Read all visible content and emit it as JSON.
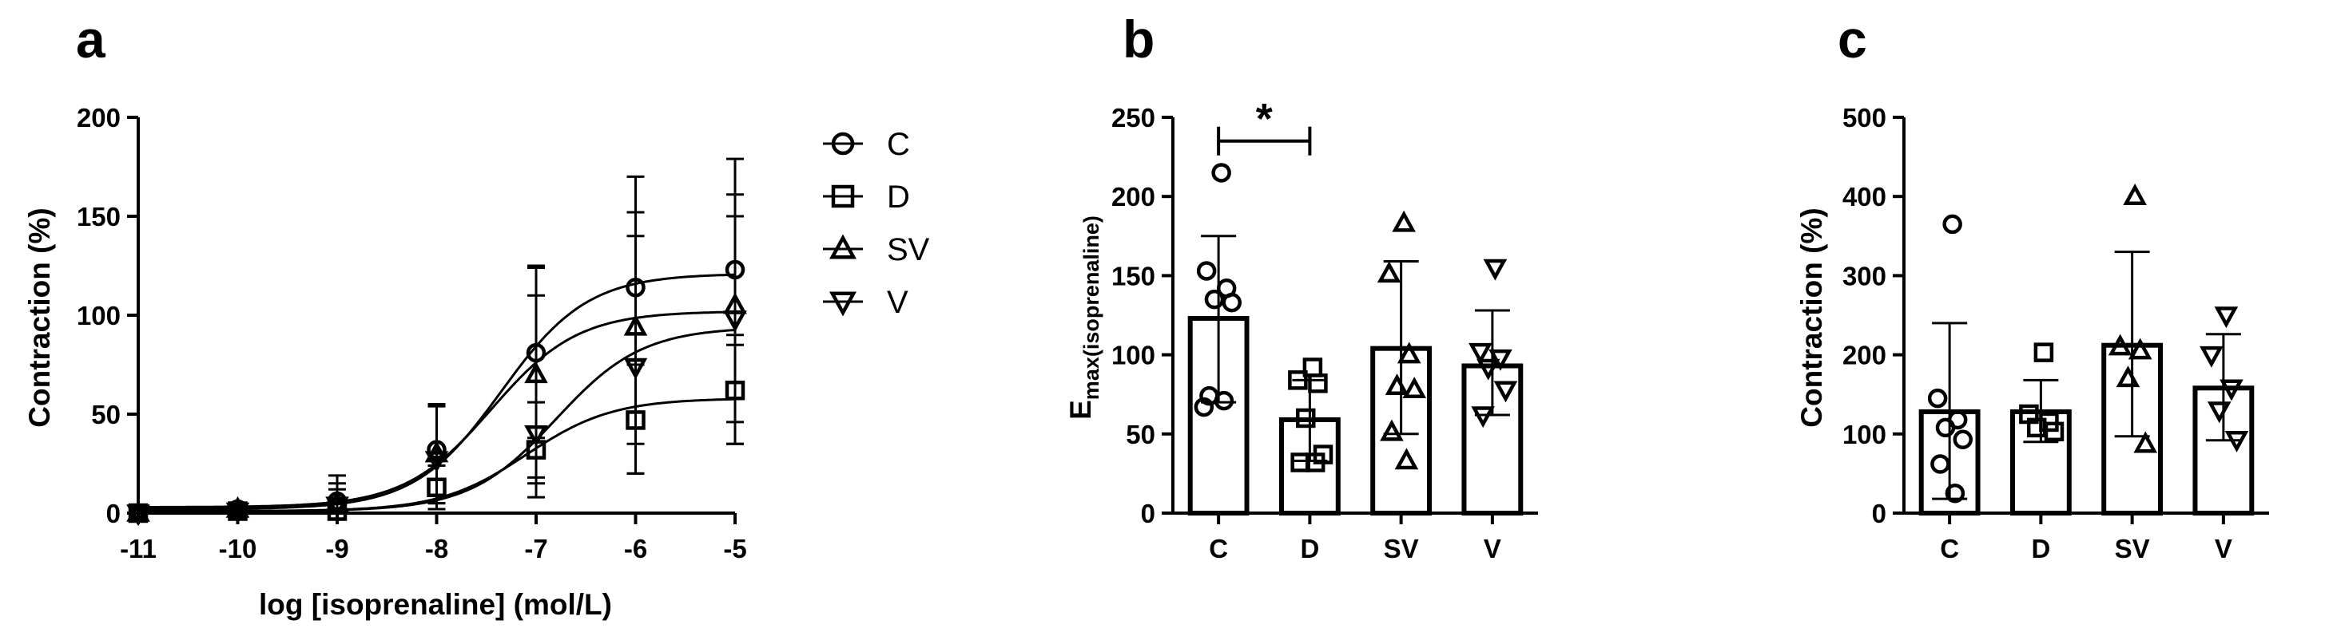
{
  "panels": {
    "a": {
      "label": "a"
    },
    "b": {
      "label": "b"
    },
    "c": {
      "label": "c"
    }
  },
  "chart_data": [
    {
      "type": "line",
      "panel": "a",
      "xlabel": "log [isoprenaline] (mol/L)",
      "ylabel": "Contraction (%)",
      "xlim": [
        -11,
        -5
      ],
      "ylim": [
        0,
        200
      ],
      "x_ticks": [
        "-11",
        "-10",
        "-9",
        "-8",
        "-7",
        "-6",
        "-5"
      ],
      "y_ticks": [
        "0",
        "50",
        "100",
        "150",
        "200"
      ],
      "x": [
        -11,
        -10,
        -9,
        -8,
        -7,
        -6,
        -5
      ],
      "fit": "sigmoidal concentration-response",
      "legend_position": "right",
      "series": [
        {
          "name": "C",
          "marker": "circle",
          "values": [
            0,
            2,
            6,
            32,
            81,
            114,
            123
          ],
          "err_upper": [
            0,
            3,
            12,
            55,
            124,
            152,
            161
          ],
          "err_lower": [
            0,
            1,
            0,
            9,
            38,
            77,
            85
          ],
          "fit_bottom": 2,
          "fit_top": 121,
          "fit_logEC50": -7.35
        },
        {
          "name": "D",
          "marker": "square",
          "values": [
            0,
            1,
            1,
            13,
            32,
            47,
            62
          ],
          "err_upper": [
            0,
            2,
            5,
            24,
            56,
            75,
            90
          ],
          "err_lower": [
            0,
            0,
            0,
            2,
            8,
            20,
            35
          ],
          "fit_bottom": 1,
          "fit_top": 58,
          "fit_logEC50": -7.1
        },
        {
          "name": "SV",
          "marker": "triangle-up",
          "values": [
            0,
            2,
            5,
            30,
            70,
            94,
            105
          ],
          "err_upper": [
            0,
            3,
            19,
            55,
            125,
            170,
            179
          ],
          "err_lower": [
            0,
            1,
            0,
            5,
            15,
            20,
            35
          ],
          "fit_bottom": 3,
          "fit_top": 102,
          "fit_logEC50": -7.45
        },
        {
          "name": "V",
          "marker": "triangle-down",
          "values": [
            0,
            1,
            4,
            27,
            40,
            74,
            98
          ],
          "err_upper": [
            0,
            2,
            15,
            54,
            110,
            140,
            150
          ],
          "err_lower": [
            0,
            0,
            0,
            5,
            18,
            35,
            46
          ],
          "fit_bottom": 1,
          "fit_top": 94,
          "fit_logEC50": -6.8
        }
      ]
    },
    {
      "type": "bar",
      "panel": "b",
      "ylabel_main": "E",
      "ylabel_sub": "max(isoprenaline)",
      "ylim": [
        0,
        250
      ],
      "y_ticks": [
        "0",
        "50",
        "100",
        "150",
        "200",
        "250"
      ],
      "categories": [
        "C",
        "D",
        "SV",
        "V"
      ],
      "markers": [
        "circle",
        "square",
        "triangle-up",
        "triangle-down"
      ],
      "values": [
        123,
        59,
        104,
        93
      ],
      "err_upper": [
        175,
        84,
        159,
        128
      ],
      "err_lower": [
        70,
        33,
        50,
        62
      ],
      "points": [
        [
          215,
          153,
          142,
          135,
          133,
          74,
          71,
          67
        ],
        [
          92,
          84,
          82,
          60,
          37,
          32,
          32
        ],
        [
          183,
          151,
          100,
          80,
          78,
          51,
          33
        ],
        [
          155,
          102,
          98,
          92,
          78,
          62
        ]
      ],
      "significance": {
        "from": "C",
        "to": "D",
        "label": "*",
        "y": 235
      }
    },
    {
      "type": "bar",
      "panel": "c",
      "ylabel": "Contraction (%)",
      "ylim": [
        0,
        500
      ],
      "y_ticks": [
        "0",
        "100",
        "200",
        "300",
        "400",
        "500"
      ],
      "categories": [
        "C",
        "D",
        "SV",
        "V"
      ],
      "markers": [
        "circle",
        "square",
        "triangle-up",
        "triangle-down"
      ],
      "values": [
        128,
        128,
        212,
        158
      ],
      "err_upper": [
        240,
        168,
        330,
        226
      ],
      "err_lower": [
        18,
        90,
        97,
        92
      ],
      "points": [
        [
          365,
          145,
          118,
          108,
          93,
          62,
          25
        ],
        [
          203,
          125,
          115,
          108,
          103
        ],
        [
          400,
          210,
          205,
          170,
          87
        ],
        [
          250,
          200,
          158,
          130,
          93
        ]
      ]
    }
  ]
}
